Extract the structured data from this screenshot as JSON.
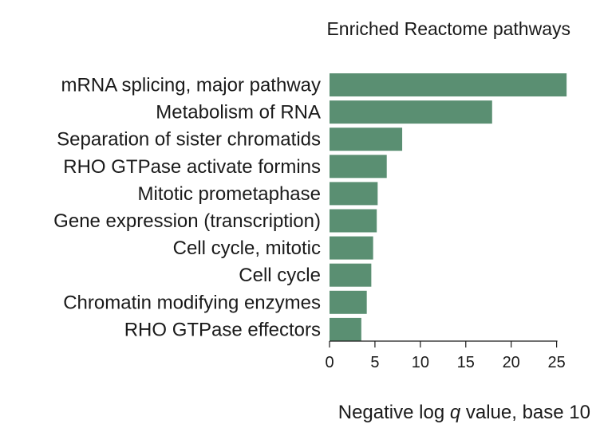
{
  "chart_data": {
    "type": "bar",
    "orientation": "horizontal",
    "title": "Enriched Reactome pathways",
    "xlabel_parts": [
      "Negative log ",
      "q",
      " value, base 10"
    ],
    "categories": [
      "mRNA splicing, major pathway",
      "Metabolism of RNA",
      "Separation of sister chromatids",
      "RHO GTPase activate formins",
      "Mitotic prometaphase",
      "Gene expression (transcription)",
      "Cell cycle, mitotic",
      "Cell cycle",
      "Chromatin modifying enzymes",
      "RHO GTPase effectors"
    ],
    "values": [
      26.1,
      17.9,
      8.0,
      6.3,
      5.3,
      5.2,
      4.8,
      4.6,
      4.1,
      3.5
    ],
    "xlim": [
      0,
      26
    ],
    "xticks": [
      "0",
      "5",
      "10",
      "15",
      "20",
      "25"
    ],
    "bar_color": "#5a8f72",
    "grid": false
  }
}
